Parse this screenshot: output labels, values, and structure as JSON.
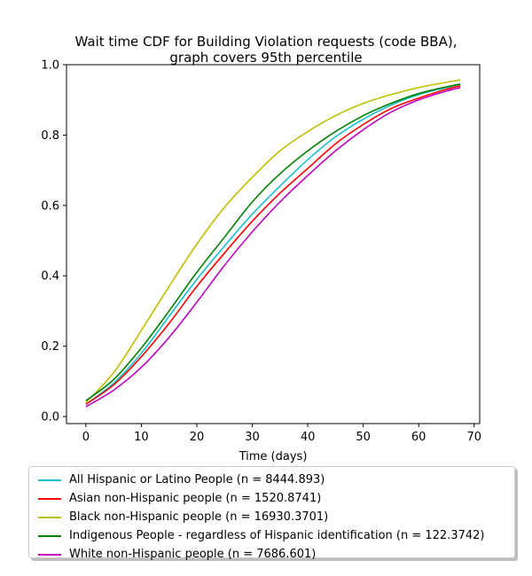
{
  "chart_data": {
    "type": "line",
    "title_line1": "Wait time CDF for Building Violation  requests (code BBA),",
    "title_line2": "graph covers 95th percentile",
    "xlabel": "Time (days)",
    "ylabel": "",
    "xlim": [
      -3.5,
      71
    ],
    "ylim": [
      -0.02,
      1.0
    ],
    "xticks": [
      0,
      10,
      20,
      30,
      40,
      50,
      60,
      70
    ],
    "yticks": [
      0.0,
      0.2,
      0.4,
      0.6,
      0.8,
      1.0
    ],
    "xtick_labels": [
      "0",
      "10",
      "20",
      "30",
      "40",
      "50",
      "60",
      "70"
    ],
    "ytick_labels": [
      "0.0",
      "0.2",
      "0.4",
      "0.6",
      "0.8",
      "1.0"
    ],
    "grid": false,
    "legend_position": "below",
    "x": [
      0,
      5,
      10,
      15,
      20,
      25,
      30,
      35,
      40,
      45,
      50,
      55,
      60,
      65,
      67.5
    ],
    "series": [
      {
        "name": "All Hispanic or Latino People (n = 8444.893)",
        "color": "#17becf",
        "values": [
          0.035,
          0.095,
          0.18,
          0.285,
          0.39,
          0.485,
          0.575,
          0.655,
          0.73,
          0.795,
          0.845,
          0.885,
          0.915,
          0.935,
          0.945
        ]
      },
      {
        "name": "Asian non-Hispanic people (n = 1520.8741)",
        "color": "#ff0000",
        "values": [
          0.035,
          0.09,
          0.17,
          0.265,
          0.37,
          0.465,
          0.555,
          0.635,
          0.705,
          0.775,
          0.83,
          0.875,
          0.905,
          0.93,
          0.94
        ]
      },
      {
        "name": "Black non-Hispanic people (n = 16930.3701)",
        "color": "#bfbf00",
        "values": [
          0.04,
          0.125,
          0.245,
          0.37,
          0.49,
          0.595,
          0.68,
          0.755,
          0.81,
          0.855,
          0.89,
          0.915,
          0.935,
          0.95,
          0.957
        ]
      },
      {
        "name": "Indigenous People - regardless of Hispanic identification (n = 122.3742)",
        "color": "#008000",
        "values": [
          0.045,
          0.105,
          0.195,
          0.3,
          0.41,
          0.51,
          0.61,
          0.69,
          0.755,
          0.81,
          0.855,
          0.89,
          0.918,
          0.937,
          0.945
        ]
      },
      {
        "name": "White non-Hispanic people (n = 7686.601)",
        "color": "#bf00bf",
        "values": [
          0.028,
          0.075,
          0.14,
          0.225,
          0.325,
          0.43,
          0.525,
          0.61,
          0.685,
          0.755,
          0.815,
          0.865,
          0.9,
          0.925,
          0.935
        ]
      }
    ]
  }
}
